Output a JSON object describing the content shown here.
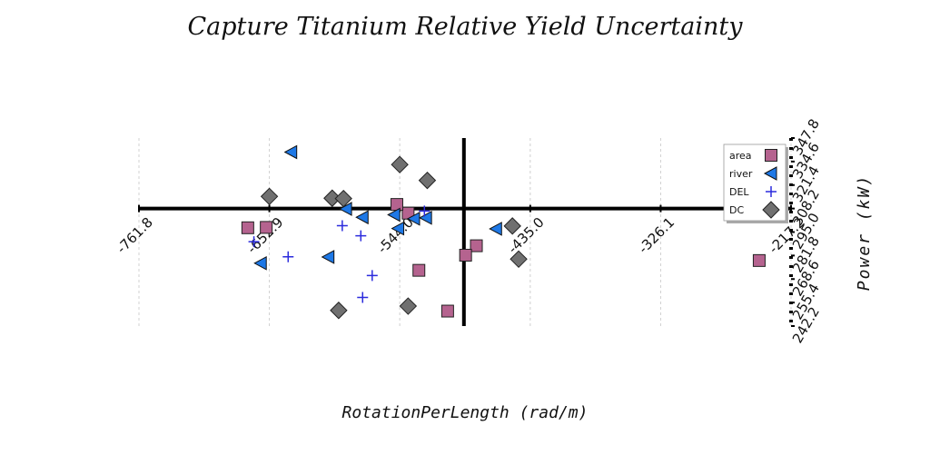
{
  "chart_data": {
    "type": "scatter",
    "title": "Capture Titanium Relative Yield Uncertainty",
    "xlabel": "RotationPerLength (rad/m)",
    "ylabel": "Power (kW)",
    "xlim": [
      -761.8,
      -217.2
    ],
    "ylim": [
      242.2,
      347.8
    ],
    "x_ticks": [
      "-761.8",
      "-652.9",
      "-544.0",
      "-435.0",
      "-326.1",
      "-217.2"
    ],
    "y_ticks": [
      "242.2",
      "255.4",
      "268.6",
      "281.8",
      "295.0",
      "308.2",
      "321.4",
      "334.6",
      "347.8"
    ],
    "x_axis_crossing": 308.2,
    "y_axis_crossing": -490.4,
    "grid": "vertical dashed",
    "legend_position": "top-right",
    "series": [
      {
        "name": "area",
        "marker": "square",
        "color": "#b5638f",
        "points": [
          [
            -670.9,
            297.4
          ],
          [
            -655.5,
            297.6
          ],
          [
            -537.0,
            305.6
          ],
          [
            -546.4,
            310.5
          ],
          [
            -528.0,
            273.5
          ],
          [
            -504.0,
            250.6
          ],
          [
            -480.0,
            287.3
          ],
          [
            -489.0,
            282.0
          ],
          [
            -243.8,
            279.0
          ]
        ]
      },
      {
        "name": "river",
        "marker": "triangle-left",
        "color": "#1e78e6",
        "points": [
          [
            -634.6,
            339.9
          ],
          [
            -603.5,
            281.0
          ],
          [
            -575.0,
            303.3
          ],
          [
            -588.8,
            308.0
          ],
          [
            -545.2,
            297.0
          ],
          [
            -548.5,
            304.7
          ],
          [
            -532.0,
            302.5
          ],
          [
            -522.0,
            303.0
          ],
          [
            -463.5,
            296.8
          ],
          [
            -660.0,
            277.5
          ]
        ]
      },
      {
        "name": "DEL",
        "marker": "plus",
        "color": "#2b2bdd",
        "points": [
          [
            -665.8,
            289.6
          ],
          [
            -592.0,
            298.6
          ],
          [
            -576.5,
            292.9
          ],
          [
            -637.2,
            281.1
          ],
          [
            -567.0,
            270.6
          ],
          [
            -523.4,
            306.8
          ],
          [
            -575.0,
            258.3
          ]
        ]
      },
      {
        "name": "DC",
        "marker": "diamond",
        "color": "#707070",
        "points": [
          [
            -652.9,
            315.0
          ],
          [
            -600.4,
            314.0
          ],
          [
            -591.0,
            313.8
          ],
          [
            -544.0,
            332.9
          ],
          [
            -521.0,
            324.0
          ],
          [
            -449.9,
            298.4
          ],
          [
            -444.7,
            279.8
          ],
          [
            -595.0,
            251.0
          ],
          [
            -537.0,
            253.4
          ]
        ]
      }
    ]
  }
}
